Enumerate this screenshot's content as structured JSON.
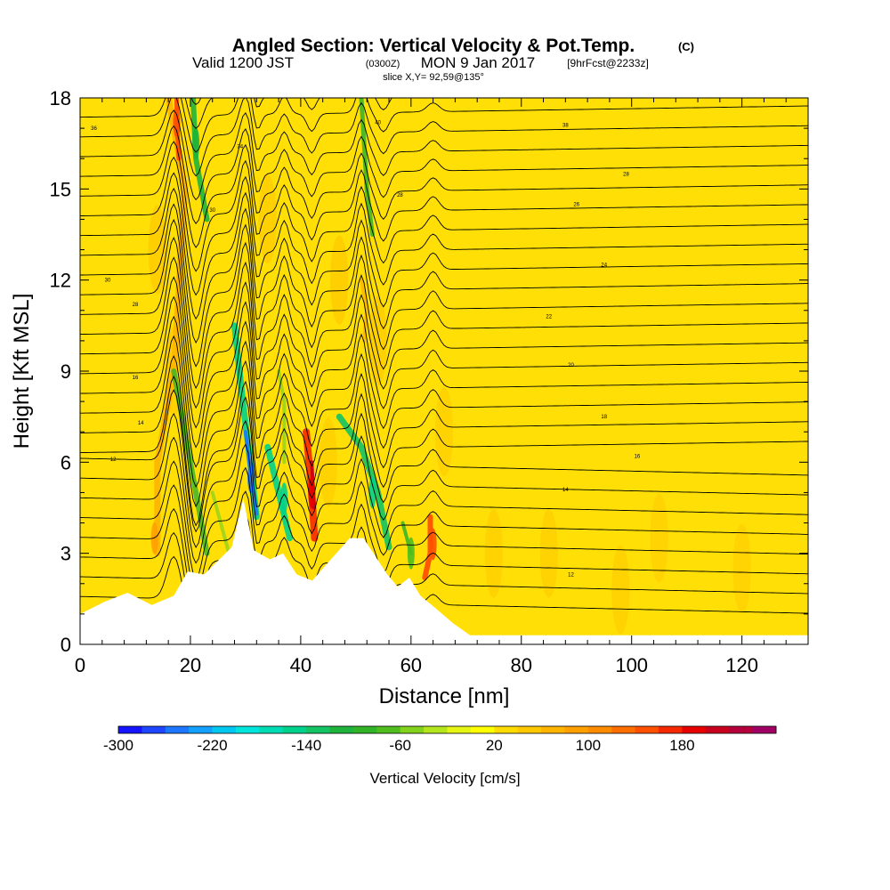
{
  "header": {
    "title": "Angled Section: Vertical Velocity & Pot.Temp.",
    "title_unit": "(C)",
    "valid_prefix": "Valid 1200 JST",
    "valid_z": "(0300Z)",
    "valid_date": "MON 9 Jan 2017",
    "forecast": "[9hrFcst@2233z]",
    "slice": "slice X,Y= 92,59@135°"
  },
  "chart_data": {
    "type": "heatmap",
    "xlabel": "Distance [nm]",
    "ylabel": "Height [Kft MSL]",
    "xlim": [
      0,
      132
    ],
    "ylim": [
      0,
      18
    ],
    "x_ticks": [
      0,
      20,
      40,
      60,
      80,
      100,
      120
    ],
    "y_ticks": [
      0,
      3,
      6,
      9,
      12,
      15,
      18
    ],
    "x_tick_labels": [
      "0",
      "20",
      "40",
      "60",
      "80",
      "100",
      "120"
    ],
    "y_tick_labels": [
      "0",
      "3",
      "6",
      "9",
      "12",
      "15",
      "18"
    ],
    "background_level_cm_s": 20,
    "terrain_profile": {
      "x": [
        0,
        4.4,
        8.6,
        13,
        17,
        19.5,
        22.5,
        27.5,
        29.6,
        31.5,
        34.4,
        36.8,
        39.3,
        42.1,
        44.5,
        48.9,
        51.4,
        55.7,
        57.6,
        59.7,
        61.7,
        64.4,
        67.6,
        70.7,
        132
      ],
      "height_kft": [
        1.0,
        1.4,
        1.7,
        1.3,
        1.6,
        2.4,
        2.3,
        3.2,
        4.8,
        3.1,
        2.8,
        3.0,
        2.3,
        2.1,
        2.6,
        3.5,
        3.5,
        2.3,
        1.9,
        2.2,
        1.6,
        1.2,
        0.7,
        0.3,
        0.3
      ]
    },
    "velocity_features": [
      {
        "x": 13.5,
        "height_kft": 3.5,
        "vertical_velocity_cm_s": 80
      },
      {
        "x": 17.5,
        "height_kft": 17.2,
        "vertical_velocity_cm_s": 140
      },
      {
        "x": 21,
        "height_kft": 16.5,
        "vertical_velocity_cm_s": -120
      },
      {
        "x": 31,
        "height_kft": 5.5,
        "vertical_velocity_cm_s": -260
      },
      {
        "x": 37,
        "height_kft": 4.8,
        "vertical_velocity_cm_s": -150
      },
      {
        "x": 42,
        "height_kft": 5.0,
        "vertical_velocity_cm_s": 190
      },
      {
        "x": 53,
        "height_kft": 5.0,
        "vertical_velocity_cm_s": -150
      },
      {
        "x": 60,
        "height_kft": 3.0,
        "vertical_velocity_cm_s": -80
      },
      {
        "x": 64,
        "height_kft": 3.3,
        "vertical_velocity_cm_s": 150
      }
    ],
    "isentrope_labels": [
      {
        "text": "36",
        "x": 2.5,
        "height_kft": 17.0
      },
      {
        "text": "34",
        "x": 29,
        "height_kft": 16.4
      },
      {
        "text": "40",
        "x": 54,
        "height_kft": 17.2
      },
      {
        "text": "38",
        "x": 88,
        "height_kft": 17.1
      },
      {
        "text": "28",
        "x": 99,
        "height_kft": 15.5
      },
      {
        "text": "26",
        "x": 90,
        "height_kft": 14.5
      },
      {
        "text": "28",
        "x": 58,
        "height_kft": 14.8
      },
      {
        "text": "30",
        "x": 24,
        "height_kft": 14.3
      },
      {
        "text": "24",
        "x": 95,
        "height_kft": 12.5
      },
      {
        "text": "30",
        "x": 5,
        "height_kft": 12.0
      },
      {
        "text": "28",
        "x": 10,
        "height_kft": 11.2
      },
      {
        "text": "22",
        "x": 85,
        "height_kft": 10.8
      },
      {
        "text": "20",
        "x": 89,
        "height_kft": 9.2
      },
      {
        "text": "16",
        "x": 10,
        "height_kft": 8.8
      },
      {
        "text": "14",
        "x": 11,
        "height_kft": 7.3
      },
      {
        "text": "18",
        "x": 95,
        "height_kft": 7.5
      },
      {
        "text": "12",
        "x": 6,
        "height_kft": 6.1
      },
      {
        "text": "16",
        "x": 101,
        "height_kft": 6.2
      },
      {
        "text": "14",
        "x": 88,
        "height_kft": 5.1
      },
      {
        "text": "12",
        "x": 89,
        "height_kft": 2.3
      }
    ]
  },
  "colorbar": {
    "label": "Vertical Velocity [cm/s]",
    "range": [
      -300,
      260
    ],
    "step": 20,
    "colors": [
      "#1414ff",
      "#1e46ff",
      "#1e78ff",
      "#14a0ff",
      "#00c8f0",
      "#00e6dc",
      "#00dcb4",
      "#00d28c",
      "#14c364",
      "#1eb43c",
      "#32b428",
      "#50be1e",
      "#82d21e",
      "#b4e61e",
      "#e6f514",
      "#ffff00",
      "#ffdc00",
      "#ffc800",
      "#ffb400",
      "#ffa000",
      "#ff8c00",
      "#ff6e00",
      "#ff5000",
      "#f52800",
      "#e60000",
      "#c8001e",
      "#b4003c",
      "#a00064"
    ],
    "tick_values": [
      -300,
      -220,
      -140,
      -60,
      20,
      100,
      180
    ],
    "tick_labels": [
      "-300",
      "-220",
      "-140",
      "-60",
      "20",
      "100",
      "180"
    ]
  }
}
